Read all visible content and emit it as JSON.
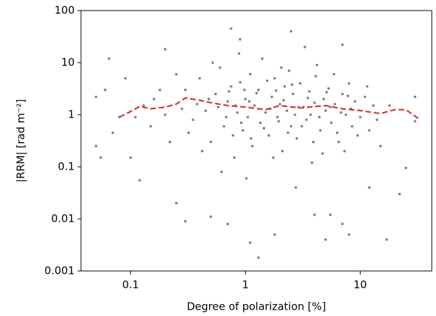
{
  "chart_data": {
    "type": "scatter",
    "xlabel": "Degree of polarization [%]",
    "ylabel": "|RRM| [rad m⁻²]",
    "xscale": "log",
    "yscale": "log",
    "xlim": [
      0.037,
      42
    ],
    "ylim": [
      0.001,
      100
    ],
    "xticks": [
      0.1,
      1,
      10
    ],
    "yticks": [
      0.001,
      0.01,
      0.1,
      1,
      10,
      100
    ],
    "series": [
      {
        "color": "#000000",
        "opacity": 0.5,
        "x": [
          0.05,
          0.05,
          0.055,
          0.065,
          0.06,
          0.07,
          0.08,
          0.09,
          0.1,
          0.12,
          0.2,
          0.25,
          0.3,
          0.5,
          0.7,
          0.75,
          0.9,
          1.1,
          1.3,
          1.8,
          2.5,
          4,
          5,
          5.5,
          7,
          8,
          12,
          17,
          22,
          25,
          30,
          30,
          7,
          0.3,
          0.35,
          0.4,
          0.45,
          0.5,
          0.55,
          0.6,
          0.65,
          0.7,
          0.75,
          0.8,
          0.85,
          0.9,
          0.95,
          1,
          1.05,
          1.1,
          1.15,
          1.2,
          1.3,
          1.35,
          1.4,
          1.5,
          1.6,
          1.7,
          1.8,
          1.9,
          2,
          2.1,
          2.2,
          2.3,
          2.4,
          2.5,
          2.6,
          2.7,
          2.8,
          3,
          3.2,
          3.4,
          3.6,
          3.8,
          4,
          4.2,
          4.5,
          4.8,
          5,
          5.3,
          5.6,
          6,
          6.5,
          7,
          7.5,
          8,
          8.5,
          9,
          10,
          11,
          12,
          13,
          15,
          0.15,
          0.18,
          0.2,
          0.22,
          0.25,
          0.28,
          0.32,
          0.38,
          0.42,
          0.48,
          0.52,
          0.58,
          0.62,
          0.68,
          0.72,
          0.78,
          0.82,
          0.88,
          0.92,
          0.98,
          1.02,
          1.08,
          1.12,
          1.25,
          1.45,
          1.55,
          1.65,
          1.75,
          1.85,
          1.95,
          2.05,
          2.15,
          2.35,
          2.55,
          2.75,
          2.9,
          3.1,
          3.3,
          3.5,
          3.7,
          3.9,
          4.1,
          4.4,
          4.7,
          5.1,
          5.5,
          5.9,
          6.3,
          6.8,
          7.3,
          7.8,
          8.3,
          9.5,
          11.5,
          14,
          18,
          0.16,
          0.13,
          0.11
        ],
        "y": [
          0.25,
          2.2,
          0.15,
          12,
          3,
          0.45,
          0.9,
          5,
          0.15,
          0.055,
          18,
          0.02,
          0.009,
          0.011,
          0.008,
          45,
          28,
          0.0035,
          0.0018,
          0.005,
          40,
          0.012,
          0.004,
          0.012,
          0.008,
          0.005,
          0.04,
          0.004,
          0.03,
          0.095,
          2.2,
          0.75,
          22,
          3,
          0.8,
          5,
          1.2,
          0.3,
          2.5,
          8,
          0.6,
          1.8,
          3.5,
          0.15,
          1.1,
          4.2,
          0.5,
          2,
          0.9,
          6,
          0.25,
          1.5,
          3,
          0.7,
          12,
          1.1,
          0.4,
          2.2,
          5,
          0.9,
          1.6,
          0.2,
          3.5,
          1.2,
          7,
          0.6,
          2.5,
          1,
          0.35,
          4,
          1.4,
          0.8,
          2.8,
          0.12,
          1.7,
          9,
          0.5,
          2,
          1.2,
          3.2,
          0.7,
          1.6,
          0.3,
          2.5,
          1,
          4,
          0.6,
          1.8,
          0.9,
          2.2,
          0.5,
          1.5,
          0.25,
          0.6,
          3,
          1,
          0.3,
          6,
          1.3,
          0.45,
          1.6,
          0.2,
          2,
          10,
          1.4,
          0.08,
          0.9,
          2.8,
          0.4,
          1.5,
          15,
          0.7,
          3,
          0.06,
          1.8,
          0.35,
          2.6,
          0.55,
          4.5,
          1.3,
          0.15,
          2.9,
          0.75,
          8,
          1.9,
          0.45,
          3.8,
          0.04,
          1.4,
          0.6,
          20,
          2.1,
          1,
          0.3,
          5.5,
          0.9,
          0.18,
          2.7,
          1.4,
          6,
          0.45,
          1.1,
          0.2,
          2.3,
          1.3,
          0.4,
          3.5,
          0.8,
          1.5,
          2,
          1.5,
          0.9
        ]
      },
      {
        "color": "#e03030",
        "style": "dashed",
        "x": [
          0.08,
          0.1,
          0.12,
          0.15,
          0.2,
          0.25,
          0.3,
          0.4,
          0.5,
          0.7,
          1,
          1.5,
          2,
          3,
          5,
          7,
          10,
          15,
          20,
          25,
          32
        ],
        "y": [
          0.9,
          1.15,
          1.45,
          1.3,
          1.4,
          1.6,
          2.1,
          1.9,
          1.7,
          1.5,
          1.4,
          1.25,
          1.5,
          1.35,
          1.5,
          1.3,
          1.2,
          1.05,
          1.25,
          1.25,
          0.85
        ]
      }
    ]
  }
}
